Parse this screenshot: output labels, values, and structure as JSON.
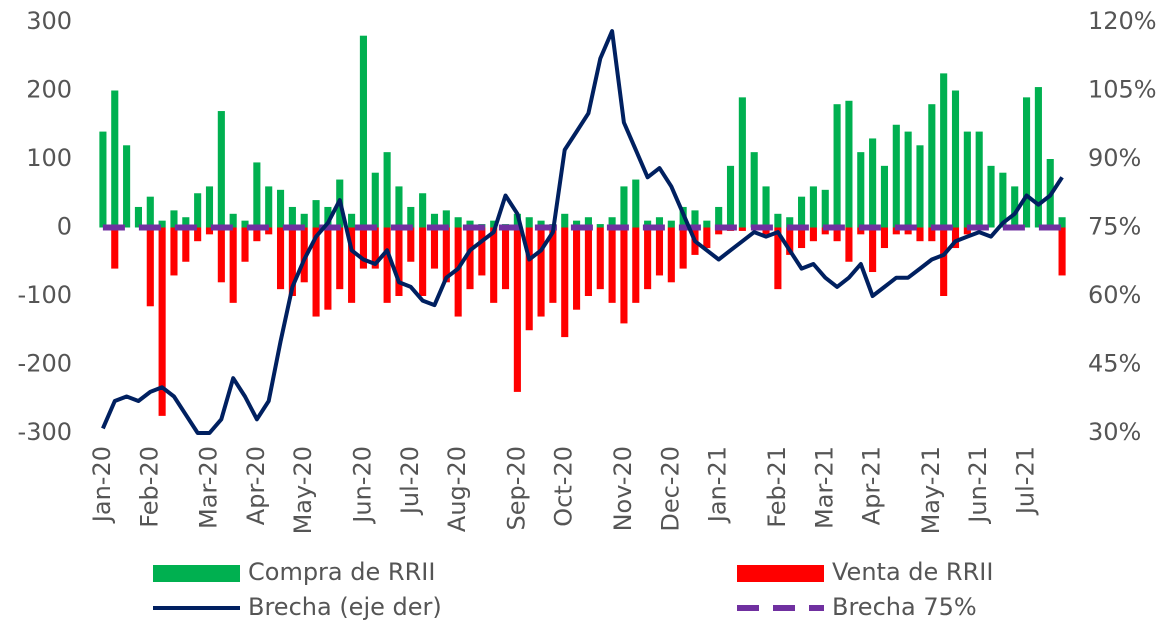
{
  "chart_data": {
    "type": "bar_line",
    "categories": [
      "Jan-20",
      null,
      null,
      null,
      "Feb-20",
      null,
      null,
      null,
      null,
      "Mar-20",
      null,
      null,
      null,
      "Apr-20",
      null,
      null,
      null,
      "May-20",
      null,
      null,
      null,
      null,
      "Jun-20",
      null,
      null,
      null,
      "Jul-20",
      null,
      null,
      null,
      "Aug-20",
      null,
      null,
      null,
      null,
      "Sep-20",
      null,
      null,
      null,
      "Oct-20",
      null,
      null,
      null,
      null,
      "Nov-20",
      null,
      null,
      null,
      "Dec-20",
      null,
      null,
      null,
      "Jan-21",
      null,
      null,
      null,
      null,
      "Feb-21",
      null,
      null,
      null,
      "Mar-21",
      null,
      null,
      null,
      "Apr-21",
      null,
      null,
      null,
      null,
      "May-21",
      null,
      null,
      null,
      "Jun-21",
      null,
      null,
      null,
      "Jul-21",
      null,
      null,
      null
    ],
    "series": [
      {
        "name": "Compra de RRII",
        "color": "#00b050",
        "kind": "bar",
        "values": [
          140,
          200,
          120,
          30,
          45,
          10,
          25,
          15,
          50,
          60,
          170,
          20,
          10,
          95,
          60,
          55,
          30,
          20,
          40,
          30,
          70,
          20,
          280,
          80,
          110,
          60,
          30,
          50,
          20,
          25,
          15,
          10,
          5,
          10,
          5,
          20,
          15,
          10,
          5,
          20,
          10,
          15,
          5,
          15,
          60,
          70,
          10,
          15,
          10,
          30,
          25,
          10,
          30,
          90,
          190,
          110,
          60,
          20,
          15,
          45,
          60,
          55,
          180,
          185,
          110,
          130,
          90,
          150,
          140,
          120,
          180,
          225,
          200,
          140,
          140,
          90,
          80,
          60,
          190,
          205,
          100,
          15
        ]
      },
      {
        "name": "Venta de RRII",
        "color": "#ff0000",
        "kind": "bar",
        "values": [
          0,
          -60,
          0,
          0,
          -115,
          -275,
          -70,
          -50,
          -20,
          -10,
          -80,
          -110,
          -50,
          -20,
          -10,
          -90,
          -100,
          -80,
          -130,
          -120,
          -90,
          -110,
          -60,
          -60,
          -110,
          -100,
          -50,
          -100,
          -60,
          -80,
          -130,
          -90,
          -70,
          -110,
          -90,
          -240,
          -150,
          -130,
          -110,
          -160,
          -120,
          -100,
          -90,
          -110,
          -140,
          -110,
          -90,
          -70,
          -80,
          -60,
          -40,
          -30,
          -10,
          -5,
          -5,
          0,
          -10,
          -90,
          -40,
          -30,
          -20,
          -10,
          -20,
          -50,
          -10,
          -65,
          -30,
          -10,
          -10,
          -20,
          -20,
          -100,
          -30,
          -10,
          0,
          0,
          0,
          0,
          0,
          0,
          0,
          -70
        ]
      },
      {
        "name": "Brecha (eje der)",
        "color": "#002060",
        "kind": "line",
        "axis": "y2",
        "values": [
          31,
          37,
          38,
          37,
          39,
          40,
          38,
          34,
          30,
          30,
          33,
          42,
          38,
          33,
          37,
          50,
          62,
          68,
          73,
          76,
          81,
          70,
          68,
          67,
          70,
          63,
          62,
          59,
          58,
          64,
          66,
          70,
          72,
          74,
          82,
          78,
          68,
          70,
          74,
          92,
          96,
          100,
          112,
          118,
          98,
          92,
          86,
          88,
          84,
          78,
          72,
          70,
          68,
          70,
          72,
          74,
          73,
          74,
          70,
          66,
          67,
          64,
          62,
          64,
          67,
          60,
          62,
          64,
          64,
          66,
          68,
          69,
          72,
          73,
          74,
          73,
          76,
          78,
          82,
          80,
          82,
          86
        ]
      },
      {
        "name": "Brecha 75%",
        "color": "#7030a0",
        "kind": "dashed",
        "axis": "y2",
        "values": [
          75,
          75,
          75,
          75,
          75,
          75,
          75,
          75,
          75,
          75,
          75,
          75,
          75,
          75,
          75,
          75,
          75,
          75,
          75,
          75,
          75,
          75,
          75,
          75,
          75,
          75,
          75,
          75,
          75,
          75,
          75,
          75,
          75,
          75,
          75,
          75,
          75,
          75,
          75,
          75,
          75,
          75,
          75,
          75,
          75,
          75,
          75,
          75,
          75,
          75,
          75,
          75,
          75,
          75,
          75,
          75,
          75,
          75,
          75,
          75,
          75,
          75,
          75,
          75,
          75,
          75,
          75,
          75,
          75,
          75,
          75,
          75,
          75,
          75,
          75,
          75,
          75,
          75,
          75,
          75,
          75,
          75
        ]
      }
    ],
    "ylim": [
      -300,
      300
    ],
    "yticks": [
      -300,
      -200,
      -100,
      0,
      100,
      200,
      300
    ],
    "y2lim": [
      30,
      120
    ],
    "y2ticks": [
      {
        "value": 30,
        "label": "30%"
      },
      {
        "value": 45,
        "label": "45%"
      },
      {
        "value": 60,
        "label": "60%"
      },
      {
        "value": 75,
        "label": "75%"
      },
      {
        "value": 90,
        "label": "90%"
      },
      {
        "value": 105,
        "label": "105%"
      },
      {
        "value": 120,
        "label": "120%"
      }
    ],
    "grid": false
  }
}
